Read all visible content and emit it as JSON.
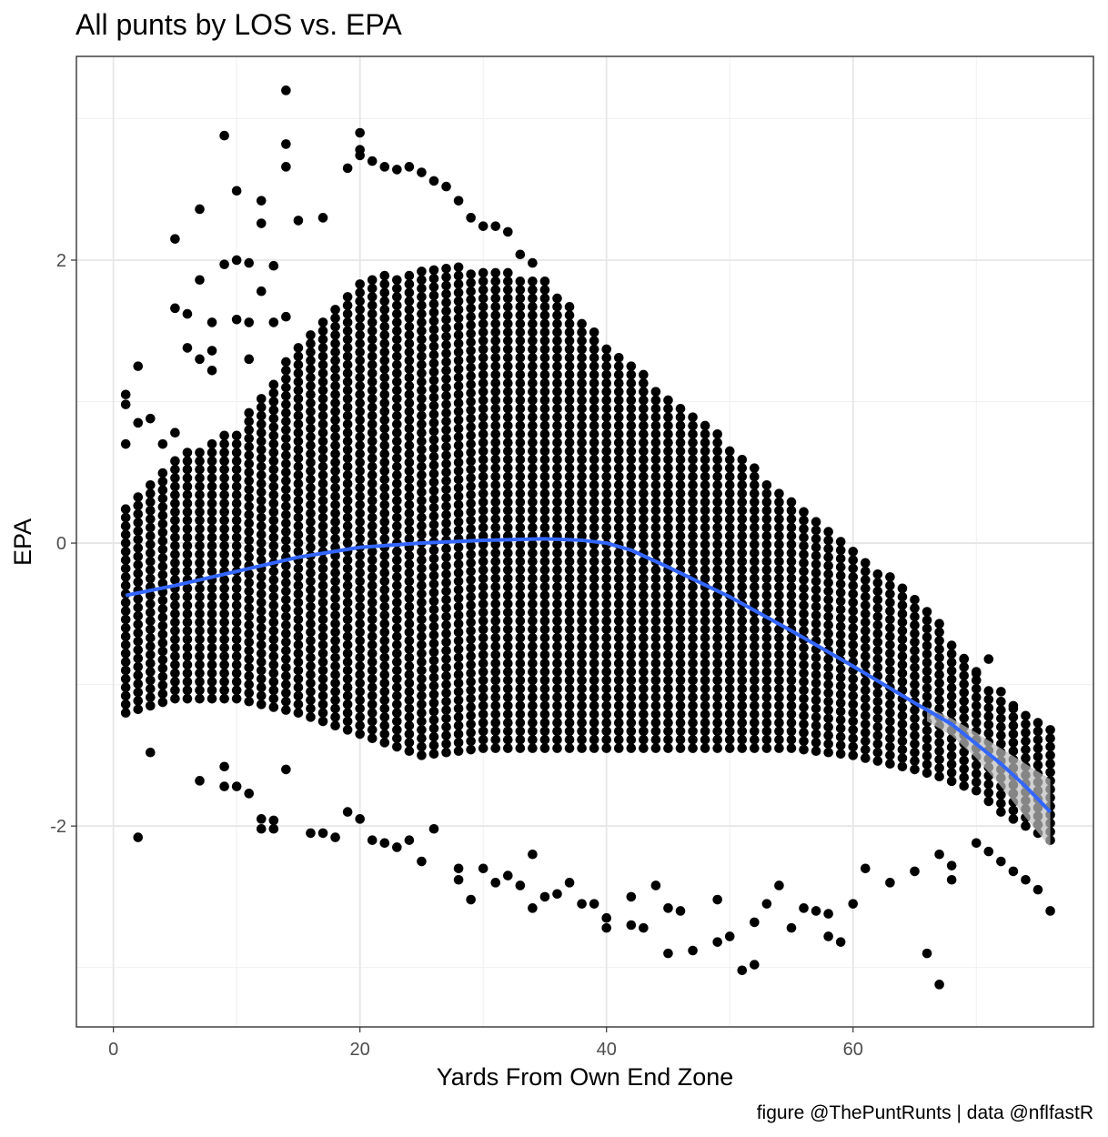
{
  "chart_data": {
    "type": "scatter",
    "title": "All punts by LOS vs. EPA",
    "xlabel": "Yards From Own End Zone",
    "ylabel": "EPA",
    "caption": "figure @ThePuntRunts | data @nflfastR",
    "xlim": [
      -3,
      79.5
    ],
    "ylim": [
      -3.42,
      3.44
    ],
    "x_ticks": [
      0,
      20,
      40,
      60
    ],
    "x_tick_labels": [
      "0",
      "20",
      "40",
      "60"
    ],
    "y_ticks": [
      -2,
      0,
      2
    ],
    "y_tick_labels": [
      "-2",
      "0",
      "2"
    ],
    "grid": true,
    "theme": "bw",
    "point_color": "#000000",
    "smooth_color": "#3366FF",
    "ribbon_color": "#bdbdbd",
    "cloud_envelope": {
      "x": [
        1,
        5,
        10,
        15,
        20,
        25,
        30,
        35,
        40,
        45,
        50,
        55,
        60,
        65,
        67,
        70,
        72,
        76
      ],
      "upper": [
        0.25,
        0.6,
        0.8,
        1.4,
        1.85,
        1.95,
        1.95,
        1.85,
        1.4,
        1.05,
        0.7,
        0.3,
        -0.05,
        -0.35,
        -0.55,
        -0.9,
        -1.1,
        -1.3
      ],
      "lower": [
        -1.2,
        -1.1,
        -1.1,
        -1.2,
        -1.35,
        -1.5,
        -1.45,
        -1.45,
        -1.45,
        -1.45,
        -1.45,
        -1.45,
        -1.5,
        -1.6,
        -1.65,
        -1.75,
        -1.9,
        -2.1
      ]
    },
    "outliers": [
      {
        "x": 14,
        "y": 3.2
      },
      {
        "x": 9,
        "y": 2.88
      },
      {
        "x": 14,
        "y": 2.82
      },
      {
        "x": 14,
        "y": 2.66
      },
      {
        "x": 20,
        "y": 2.9
      },
      {
        "x": 20,
        "y": 2.78
      },
      {
        "x": 20,
        "y": 2.74
      },
      {
        "x": 19,
        "y": 2.65
      },
      {
        "x": 21,
        "y": 2.7
      },
      {
        "x": 22,
        "y": 2.66
      },
      {
        "x": 23,
        "y": 2.64
      },
      {
        "x": 24,
        "y": 2.66
      },
      {
        "x": 25,
        "y": 2.62
      },
      {
        "x": 26,
        "y": 2.56
      },
      {
        "x": 27,
        "y": 2.52
      },
      {
        "x": 7,
        "y": 2.36
      },
      {
        "x": 10,
        "y": 2.49
      },
      {
        "x": 5,
        "y": 2.15
      },
      {
        "x": 12,
        "y": 2.42
      },
      {
        "x": 12,
        "y": 2.26
      },
      {
        "x": 15,
        "y": 2.28
      },
      {
        "x": 17,
        "y": 2.3
      },
      {
        "x": 28,
        "y": 2.42
      },
      {
        "x": 29,
        "y": 2.3
      },
      {
        "x": 30,
        "y": 2.24
      },
      {
        "x": 31,
        "y": 2.24
      },
      {
        "x": 32,
        "y": 2.2
      },
      {
        "x": 33,
        "y": 2.04
      },
      {
        "x": 34,
        "y": 1.98
      },
      {
        "x": 11,
        "y": 1.98
      },
      {
        "x": 13,
        "y": 1.96
      },
      {
        "x": 9,
        "y": 1.97
      },
      {
        "x": 10,
        "y": 2.0
      },
      {
        "x": 7,
        "y": 1.86
      },
      {
        "x": 12,
        "y": 1.78
      },
      {
        "x": 5,
        "y": 1.66
      },
      {
        "x": 6,
        "y": 1.62
      },
      {
        "x": 8,
        "y": 1.56
      },
      {
        "x": 10,
        "y": 1.58
      },
      {
        "x": 11,
        "y": 1.56
      },
      {
        "x": 13,
        "y": 1.56
      },
      {
        "x": 14,
        "y": 1.6
      },
      {
        "x": 6,
        "y": 1.38
      },
      {
        "x": 7,
        "y": 1.3
      },
      {
        "x": 8,
        "y": 1.36
      },
      {
        "x": 11,
        "y": 1.3
      },
      {
        "x": 8,
        "y": 1.22
      },
      {
        "x": 2,
        "y": 1.25
      },
      {
        "x": 1,
        "y": 1.05
      },
      {
        "x": 1,
        "y": 0.98
      },
      {
        "x": 3,
        "y": 0.88
      },
      {
        "x": 2,
        "y": 0.85
      },
      {
        "x": 1,
        "y": 0.7
      },
      {
        "x": 4,
        "y": 0.7
      },
      {
        "x": 5,
        "y": 0.78
      },
      {
        "x": 2,
        "y": -2.08
      },
      {
        "x": 3,
        "y": -1.48
      },
      {
        "x": 7,
        "y": -1.68
      },
      {
        "x": 9,
        "y": -1.72
      },
      {
        "x": 9,
        "y": -1.58
      },
      {
        "x": 10,
        "y": -1.72
      },
      {
        "x": 11,
        "y": -1.77
      },
      {
        "x": 12,
        "y": -1.95
      },
      {
        "x": 12,
        "y": -2.02
      },
      {
        "x": 13,
        "y": -1.96
      },
      {
        "x": 13,
        "y": -2.02
      },
      {
        "x": 14,
        "y": -1.6
      },
      {
        "x": 16,
        "y": -2.05
      },
      {
        "x": 17,
        "y": -2.05
      },
      {
        "x": 18,
        "y": -2.08
      },
      {
        "x": 19,
        "y": -1.9
      },
      {
        "x": 20,
        "y": -1.95
      },
      {
        "x": 21,
        "y": -2.1
      },
      {
        "x": 22,
        "y": -2.12
      },
      {
        "x": 23,
        "y": -2.15
      },
      {
        "x": 24,
        "y": -2.1
      },
      {
        "x": 25,
        "y": -2.25
      },
      {
        "x": 26,
        "y": -2.02
      },
      {
        "x": 28,
        "y": -2.3
      },
      {
        "x": 28,
        "y": -2.38
      },
      {
        "x": 29,
        "y": -2.52
      },
      {
        "x": 30,
        "y": -2.3
      },
      {
        "x": 31,
        "y": -2.4
      },
      {
        "x": 32,
        "y": -2.35
      },
      {
        "x": 33,
        "y": -2.42
      },
      {
        "x": 34,
        "y": -2.2
      },
      {
        "x": 34,
        "y": -2.58
      },
      {
        "x": 35,
        "y": -2.5
      },
      {
        "x": 36,
        "y": -2.48
      },
      {
        "x": 37,
        "y": -2.4
      },
      {
        "x": 38,
        "y": -2.55
      },
      {
        "x": 39,
        "y": -2.55
      },
      {
        "x": 40,
        "y": -2.65
      },
      {
        "x": 40,
        "y": -2.72
      },
      {
        "x": 42,
        "y": -2.5
      },
      {
        "x": 42,
        "y": -2.7
      },
      {
        "x": 43,
        "y": -2.72
      },
      {
        "x": 44,
        "y": -2.42
      },
      {
        "x": 45,
        "y": -2.58
      },
      {
        "x": 46,
        "y": -2.6
      },
      {
        "x": 45,
        "y": -2.9
      },
      {
        "x": 47,
        "y": -2.88
      },
      {
        "x": 49,
        "y": -2.52
      },
      {
        "x": 49,
        "y": -2.82
      },
      {
        "x": 50,
        "y": -2.78
      },
      {
        "x": 51,
        "y": -3.02
      },
      {
        "x": 52,
        "y": -2.98
      },
      {
        "x": 52,
        "y": -2.68
      },
      {
        "x": 53,
        "y": -2.55
      },
      {
        "x": 54,
        "y": -2.42
      },
      {
        "x": 55,
        "y": -2.72
      },
      {
        "x": 56,
        "y": -2.58
      },
      {
        "x": 57,
        "y": -2.6
      },
      {
        "x": 58,
        "y": -2.62
      },
      {
        "x": 58,
        "y": -2.78
      },
      {
        "x": 59,
        "y": -2.82
      },
      {
        "x": 60,
        "y": -2.55
      },
      {
        "x": 61,
        "y": -2.3
      },
      {
        "x": 63,
        "y": -2.4
      },
      {
        "x": 65,
        "y": -2.32
      },
      {
        "x": 66,
        "y": -2.9
      },
      {
        "x": 67,
        "y": -3.12
      },
      {
        "x": 67,
        "y": -2.2
      },
      {
        "x": 68,
        "y": -2.38
      },
      {
        "x": 68,
        "y": -2.28
      },
      {
        "x": 70,
        "y": -2.12
      },
      {
        "x": 71,
        "y": -2.18
      },
      {
        "x": 72,
        "y": -2.25
      },
      {
        "x": 73,
        "y": -2.32
      },
      {
        "x": 74,
        "y": -2.38
      },
      {
        "x": 75,
        "y": -2.45
      },
      {
        "x": 76,
        "y": -2.6
      },
      {
        "x": 71,
        "y": -0.82
      },
      {
        "x": 72,
        "y": -1.05
      },
      {
        "x": 73,
        "y": -1.15
      },
      {
        "x": 70,
        "y": -0.92
      },
      {
        "x": 69,
        "y": -0.82
      }
    ],
    "smooth_line": {
      "x": [
        1,
        5,
        10,
        15,
        20,
        25,
        30,
        35,
        38,
        40,
        42,
        45,
        50,
        55,
        60,
        65,
        68,
        70,
        72,
        74,
        76
      ],
      "y": [
        -0.37,
        -0.3,
        -0.2,
        -0.1,
        -0.03,
        0.0,
        0.02,
        0.03,
        0.02,
        0.0,
        -0.05,
        -0.17,
        -0.38,
        -0.62,
        -0.87,
        -1.13,
        -1.28,
        -1.42,
        -1.56,
        -1.72,
        -1.9
      ]
    },
    "smooth_ribbon": {
      "x": [
        66,
        68,
        70,
        72,
        74,
        76
      ],
      "upper": [
        -1.16,
        -1.24,
        -1.34,
        -1.45,
        -1.56,
        -1.67
      ],
      "lower": [
        -1.26,
        -1.36,
        -1.52,
        -1.72,
        -1.94,
        -2.15
      ]
    }
  }
}
